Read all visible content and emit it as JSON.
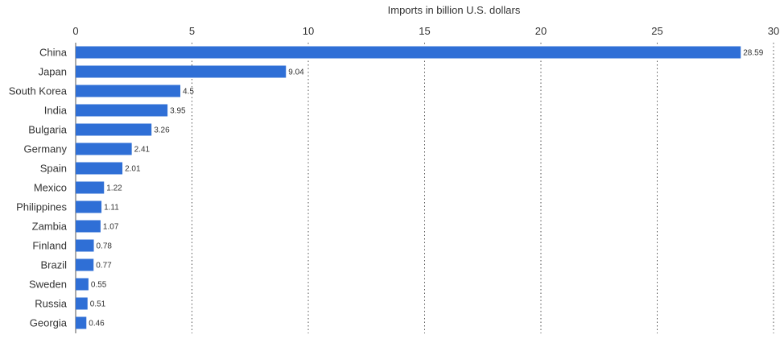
{
  "chart_data": {
    "type": "bar",
    "orientation": "horizontal",
    "xlabel": "Imports in billion U.S. dollars",
    "xlim": [
      0,
      30
    ],
    "xticks": [
      "0",
      "5",
      "10",
      "15",
      "20",
      "25",
      "30"
    ],
    "categories": [
      "China",
      "Japan",
      "South Korea",
      "India",
      "Bulgaria",
      "Germany",
      "Spain",
      "Mexico",
      "Philippines",
      "Zambia",
      "Finland",
      "Brazil",
      "Sweden",
      "Russia",
      "Georgia"
    ],
    "values": [
      28.59,
      9.04,
      4.5,
      3.95,
      3.26,
      2.41,
      2.01,
      1.22,
      1.11,
      1.07,
      0.78,
      0.77,
      0.55,
      0.51,
      0.46
    ],
    "value_labels": [
      "28.59",
      "9.04",
      "4.5",
      "3.95",
      "3.26",
      "2.41",
      "2.01",
      "1.22",
      "1.11",
      "1.07",
      "0.78",
      "0.77",
      "0.55",
      "0.51",
      "0.46"
    ],
    "bar_color": "#2f6fd6",
    "grid": "vertical dotted"
  }
}
